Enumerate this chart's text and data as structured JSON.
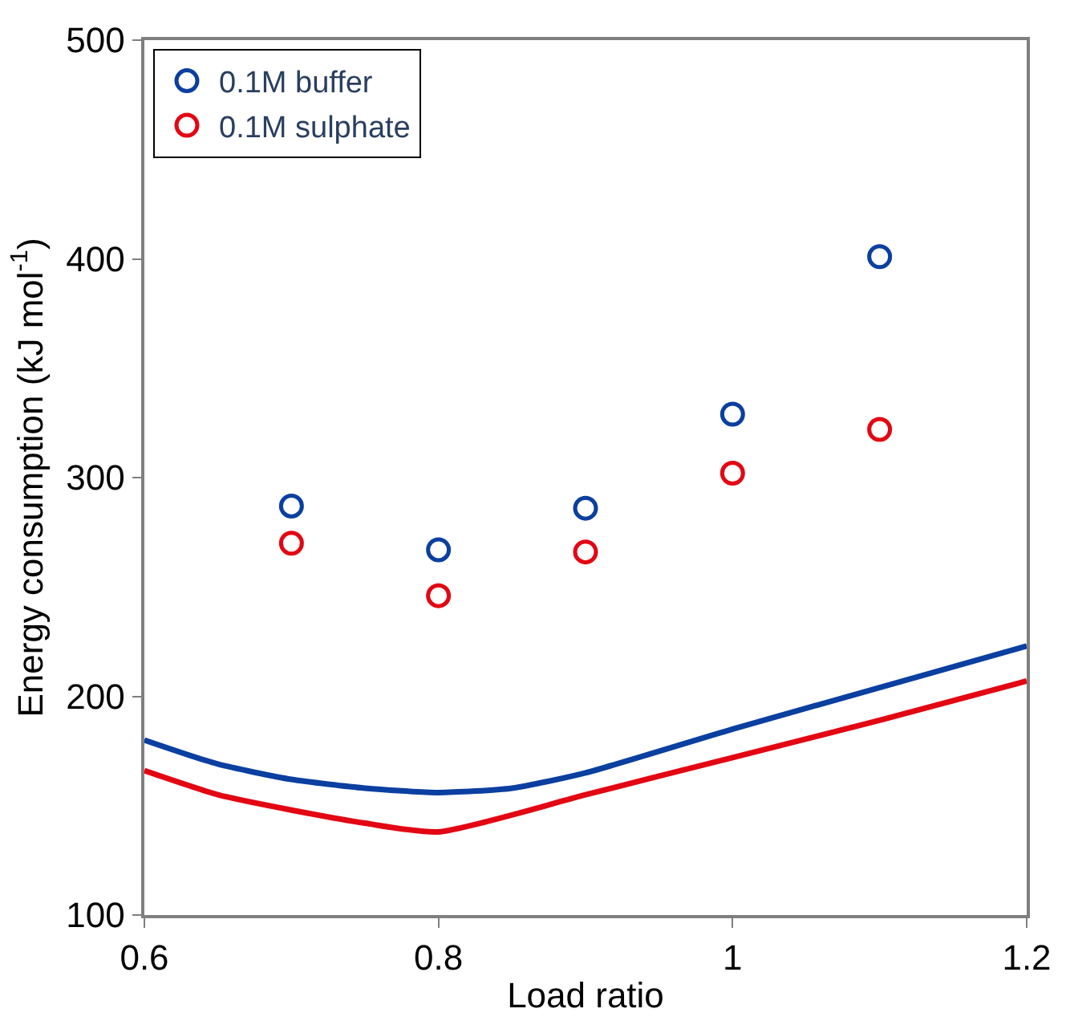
{
  "chart_data": {
    "type": "scatter",
    "xlabel": "Load ratio",
    "ylabel": "Energy consumption (kJ mol$^{-1}$)",
    "xlim": [
      0.6,
      1.2
    ],
    "xticks": [
      0.6,
      0.8,
      1,
      1.2
    ],
    "ylim": [
      100,
      500
    ],
    "yticks": [
      100,
      200,
      300,
      400,
      500
    ],
    "legend": "top left",
    "series": [
      {
        "name": "0.1M buffer",
        "marker": "circle",
        "color": "#0b3fa0",
        "x": [
          0.7,
          0.8,
          0.9,
          1.0,
          1.1
        ],
        "values": [
          287,
          267,
          286,
          329,
          401
        ]
      },
      {
        "name": "0.1M sulphate",
        "marker": "circle",
        "color": "#e30613",
        "x": [
          0.7,
          0.8,
          0.9,
          1.0,
          1.1
        ],
        "values": [
          270,
          246,
          266,
          302,
          322
        ]
      },
      {
        "type": "line",
        "marker": "none",
        "color": "#0b3fa0",
        "x": [
          0.6,
          0.65,
          0.7,
          0.75,
          0.8,
          0.85,
          0.9,
          1.0,
          1.1,
          1.2
        ],
        "values": [
          180,
          169,
          162,
          158,
          156,
          158,
          165,
          185,
          204,
          223
        ]
      },
      {
        "type": "line",
        "marker": "none",
        "color": "#e30613",
        "x": [
          0.6,
          0.65,
          0.7,
          0.75,
          0.8,
          0.9,
          1.0,
          1.1,
          1.2
        ],
        "values": [
          166,
          155,
          148,
          142,
          138,
          155,
          172,
          189,
          207
        ]
      }
    ]
  }
}
